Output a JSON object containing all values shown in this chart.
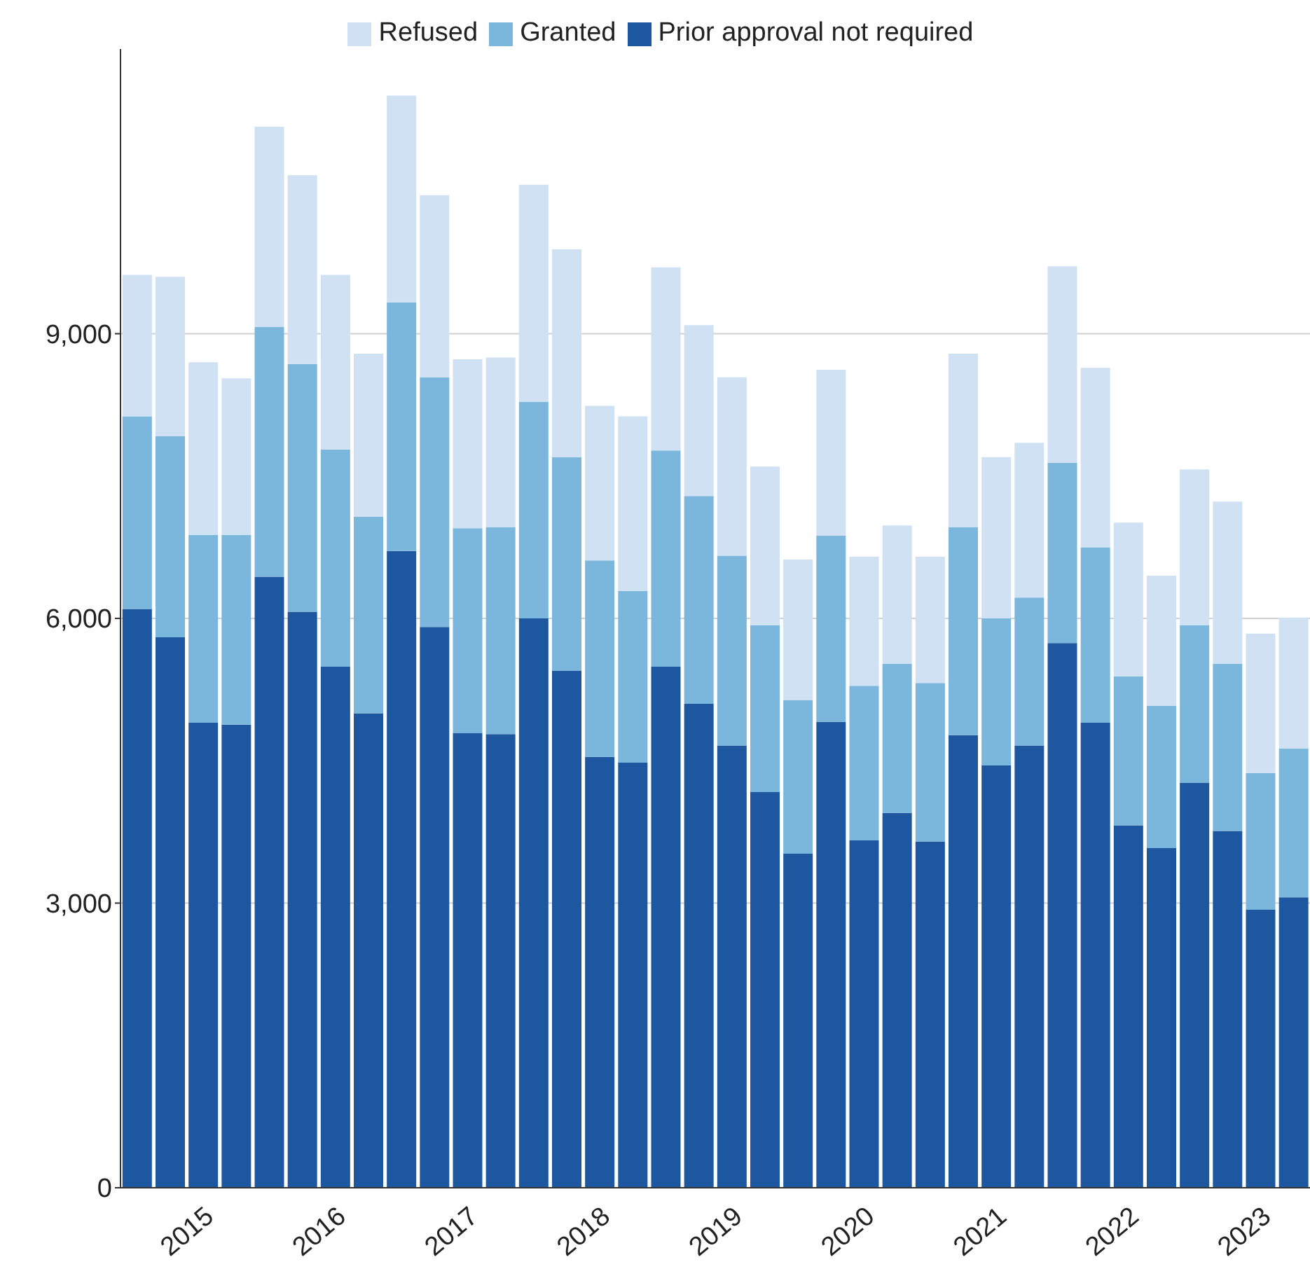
{
  "chart_data": {
    "type": "bar",
    "stacked": true,
    "categories": [
      null,
      null,
      "2015",
      null,
      null,
      null,
      "2016",
      null,
      null,
      null,
      "2017",
      null,
      null,
      null,
      "2018",
      null,
      null,
      null,
      "2019",
      null,
      null,
      null,
      "2020",
      null,
      null,
      null,
      "2021",
      null,
      null,
      null,
      "2022",
      null,
      null,
      null,
      "2023",
      null
    ],
    "series": [
      {
        "name": "Prior approval not required",
        "color": "#1c57a0",
        "values": [
          6100,
          5800,
          4900,
          4880,
          6440,
          6070,
          5490,
          5000,
          6710,
          5910,
          4790,
          4780,
          6000,
          5450,
          4540,
          4480,
          5490,
          5100,
          4660,
          4170,
          3520,
          4910,
          3660,
          3950,
          3650,
          4770,
          4450,
          4660,
          5740,
          4900,
          3820,
          3580,
          4270,
          3760,
          2930,
          3060
        ]
      },
      {
        "name": "Granted",
        "color": "#7bb6dd",
        "values": [
          2030,
          2120,
          1980,
          2000,
          2630,
          2610,
          2290,
          2070,
          2620,
          2630,
          2160,
          2180,
          2280,
          2250,
          2070,
          1810,
          2280,
          2190,
          2000,
          1760,
          1620,
          1960,
          1630,
          1570,
          1670,
          2190,
          1550,
          1560,
          1900,
          1850,
          1570,
          1500,
          1660,
          1760,
          1440,
          1570
        ]
      },
      {
        "name": "Refused",
        "color": "#cfe1f2",
        "values": [
          1490,
          1680,
          1820,
          1650,
          2110,
          1990,
          1840,
          1720,
          2180,
          1920,
          1780,
          1790,
          2290,
          2190,
          1630,
          1840,
          1930,
          1800,
          1880,
          1670,
          1480,
          1750,
          1360,
          1460,
          1330,
          1830,
          1700,
          1630,
          2070,
          1890,
          1620,
          1370,
          1640,
          1710,
          1470,
          1380
        ]
      }
    ],
    "yticks": [
      0,
      {
        "value": 3000,
        "label": "3,000"
      },
      {
        "value": 6000,
        "label": "6,000"
      },
      {
        "value": 9000,
        "label": "9,000"
      }
    ],
    "ylim": [
      0,
      12000
    ],
    "grid": "y",
    "legend": "top"
  }
}
